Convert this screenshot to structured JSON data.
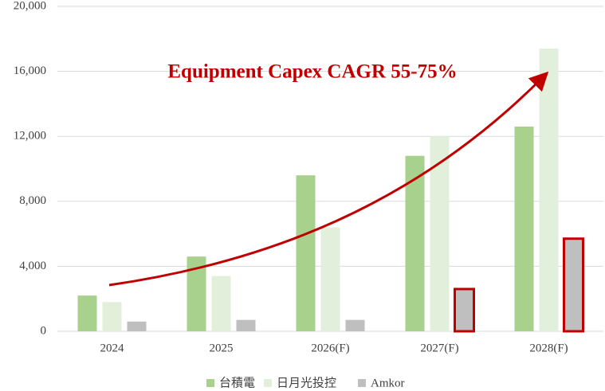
{
  "chart_data": {
    "type": "bar",
    "annotation": "Equipment Capex CAGR 55-75%",
    "categories": [
      "2024",
      "2025",
      "2026(F)",
      "2027(F)",
      "2028(F)"
    ],
    "series": [
      {
        "name": "台積電",
        "color": "#a9d18e",
        "values": [
          2200,
          4600,
          9600,
          10800,
          12600
        ]
      },
      {
        "name": "日月光投控",
        "color": "#e2efda",
        "values": [
          1800,
          3400,
          6400,
          12000,
          17400
        ]
      },
      {
        "name": "Amkor",
        "color": "#bfbfbf",
        "values": [
          600,
          700,
          700,
          2600,
          5700
        ],
        "outline_color": "#c00000",
        "outlined": [
          false,
          false,
          false,
          true,
          true
        ]
      }
    ],
    "ylim": [
      0,
      20000
    ],
    "yticks": [
      0,
      {
        "value": 4000,
        "label": "4,000"
      },
      {
        "value": 8000,
        "label": "8,000"
      },
      {
        "value": 12000,
        "label": "12,000"
      },
      {
        "value": 16000,
        "label": "16,000"
      },
      {
        "value": 20000,
        "label": "20,000"
      }
    ],
    "grid": true,
    "legend": "bottom"
  }
}
